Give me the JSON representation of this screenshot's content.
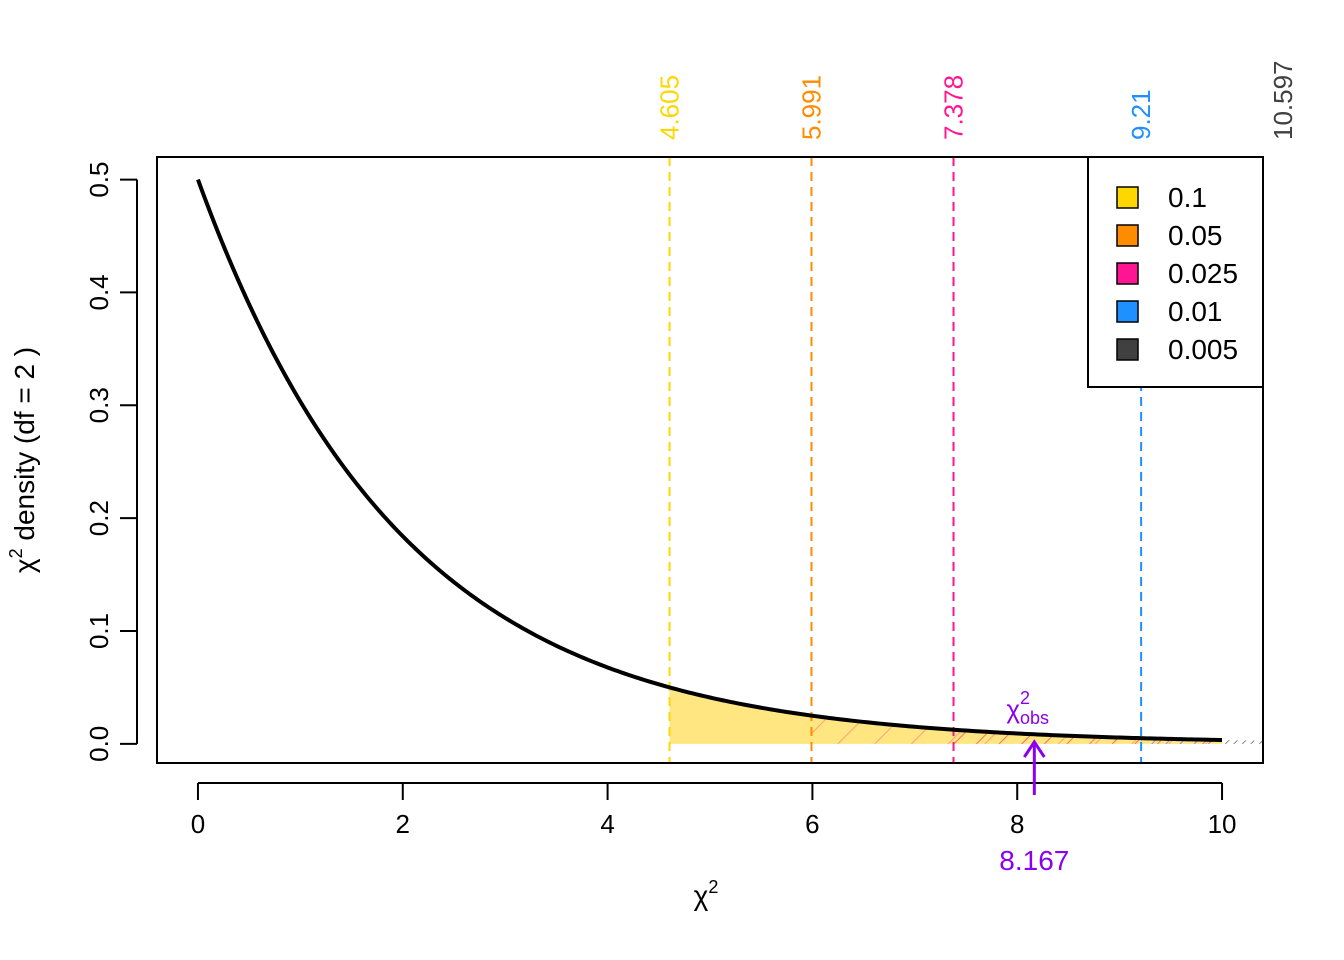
{
  "chart_data": {
    "type": "line",
    "title": "",
    "xlabel": "χ",
    "xlabel_sup": "2",
    "ylabel": "χ",
    "ylabel_sup": "2",
    "ylabel_rest": " density (df =  2 )",
    "df": 2,
    "xlim": [
      -0.4,
      10.4
    ],
    "ylim": [
      -0.017,
      0.52
    ],
    "curve_range": [
      0,
      10
    ],
    "x_ticks": [
      0,
      2,
      4,
      6,
      8,
      10
    ],
    "x_tick_labels": [
      "0",
      "2",
      "4",
      "6",
      "8",
      "10"
    ],
    "y_ticks": [
      0,
      0.1,
      0.2,
      0.3,
      0.4,
      0.5
    ],
    "y_tick_labels": [
      "0.0",
      "0.1",
      "0.2",
      "0.3",
      "0.4",
      "0.5"
    ],
    "critical_values": [
      {
        "alpha": "0.1",
        "value": 4.605,
        "label": "4.605",
        "color": "#FFD700"
      },
      {
        "alpha": "0.05",
        "value": 5.991,
        "label": "5.991",
        "color": "#FF8C00"
      },
      {
        "alpha": "0.025",
        "value": 7.378,
        "label": "7.378",
        "color": "#FF1493"
      },
      {
        "alpha": "0.01",
        "value": 9.21,
        "label": "9.21",
        "color": "#1E90FF"
      },
      {
        "alpha": "0.005",
        "value": 10.597,
        "label": "10.597",
        "color": "#404040"
      }
    ],
    "observed": {
      "value": 8.167,
      "label": "8.167",
      "symbol": "χ",
      "sup": "2",
      "sub": "obs",
      "color": "#8B00EE"
    },
    "legend": {
      "position": "top-right",
      "entries": [
        {
          "label": "0.1",
          "color": "#FFD700"
        },
        {
          "label": "0.05",
          "color": "#FF8C00"
        },
        {
          "label": "0.025",
          "color": "#FF1493"
        },
        {
          "label": "0.01",
          "color": "#1E90FF"
        },
        {
          "label": "0.005",
          "color": "#404040"
        }
      ]
    },
    "grid": false
  }
}
